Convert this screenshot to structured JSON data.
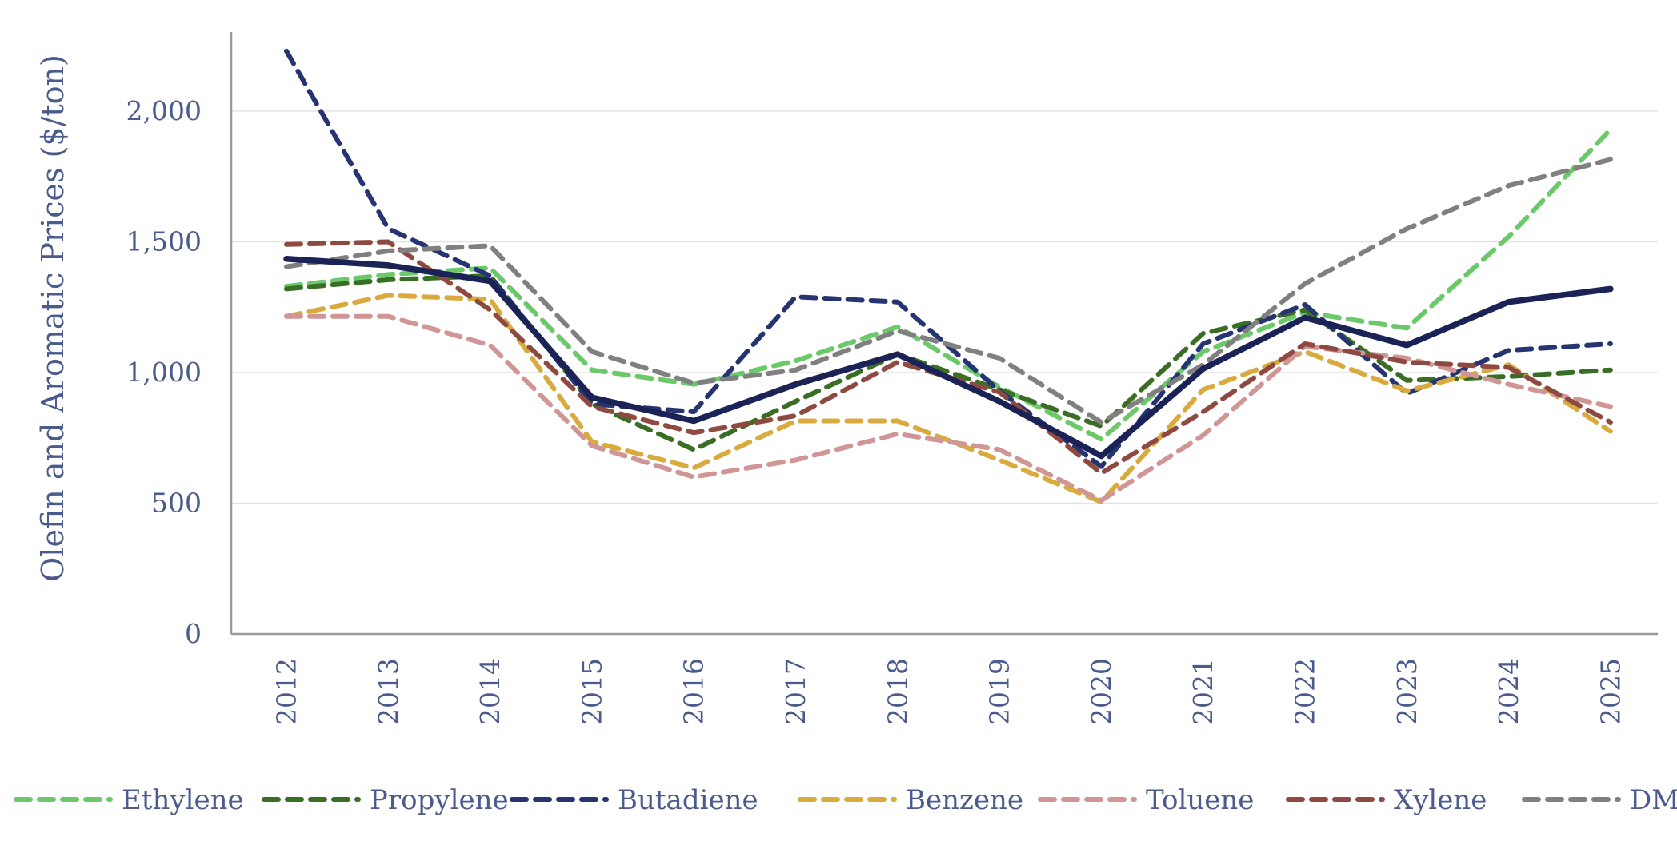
{
  "chart_data": {
    "type": "line",
    "title": "",
    "xlabel": "",
    "ylabel": "Olefin and Aromatic Prices ($/ton)",
    "x": [
      "2012",
      "2013",
      "2014",
      "2015",
      "2016",
      "2017",
      "2018",
      "2019",
      "2020",
      "2021",
      "2022",
      "2023",
      "2024",
      "2025"
    ],
    "ylim": [
      0,
      2250
    ],
    "yticks": [
      0,
      500,
      1000,
      1500,
      2000
    ],
    "ytick_labels": [
      "0",
      "500",
      "1,000",
      "1,500",
      "2,000"
    ],
    "grid": "horizontal",
    "legend_position": "bottom",
    "series": [
      {
        "name": "Ethylene",
        "color": "#6cc96a",
        "style": "dashed",
        "values": [
          1330,
          1375,
          1400,
          1010,
          955,
          1045,
          1175,
          945,
          745,
          1080,
          1230,
          1170,
          1520,
          1930
        ]
      },
      {
        "name": "Propylene",
        "color": "#3a6e24",
        "style": "dashed",
        "values": [
          1320,
          1355,
          1370,
          880,
          705,
          890,
          1070,
          935,
          795,
          1150,
          1240,
          970,
          985,
          1010
        ]
      },
      {
        "name": "Butadiene",
        "color": "#263471",
        "style": "dashed",
        "values": [
          2230,
          1550,
          1370,
          880,
          850,
          1290,
          1270,
          930,
          640,
          1110,
          1260,
          920,
          1085,
          1110
        ]
      },
      {
        "name": "Benzene",
        "color": "#d9ab3f",
        "style": "dashed",
        "values": [
          1215,
          1295,
          1280,
          735,
          635,
          815,
          815,
          665,
          505,
          935,
          1080,
          930,
          1030,
          775
        ]
      },
      {
        "name": "Toluene",
        "color": "#d09696",
        "style": "dashed",
        "values": [
          1215,
          1215,
          1105,
          720,
          600,
          665,
          765,
          705,
          510,
          760,
          1100,
          1055,
          955,
          870
        ]
      },
      {
        "name": "Xylene",
        "color": "#8e4a40",
        "style": "dashed",
        "values": [
          1490,
          1500,
          1240,
          870,
          770,
          835,
          1040,
          925,
          615,
          850,
          1110,
          1040,
          1020,
          810
        ]
      },
      {
        "name": "DMT",
        "color": "#808080",
        "style": "dashed",
        "values": [
          1405,
          1465,
          1485,
          1080,
          960,
          1010,
          1160,
          1055,
          810,
          1030,
          1340,
          1550,
          1715,
          1815
        ]
      },
      {
        "name": "",
        "color": "#1b2356",
        "style": "solid",
        "values": [
          1435,
          1410,
          1350,
          905,
          815,
          955,
          1070,
          890,
          680,
          1015,
          1210,
          1105,
          1270,
          1320
        ]
      }
    ]
  }
}
